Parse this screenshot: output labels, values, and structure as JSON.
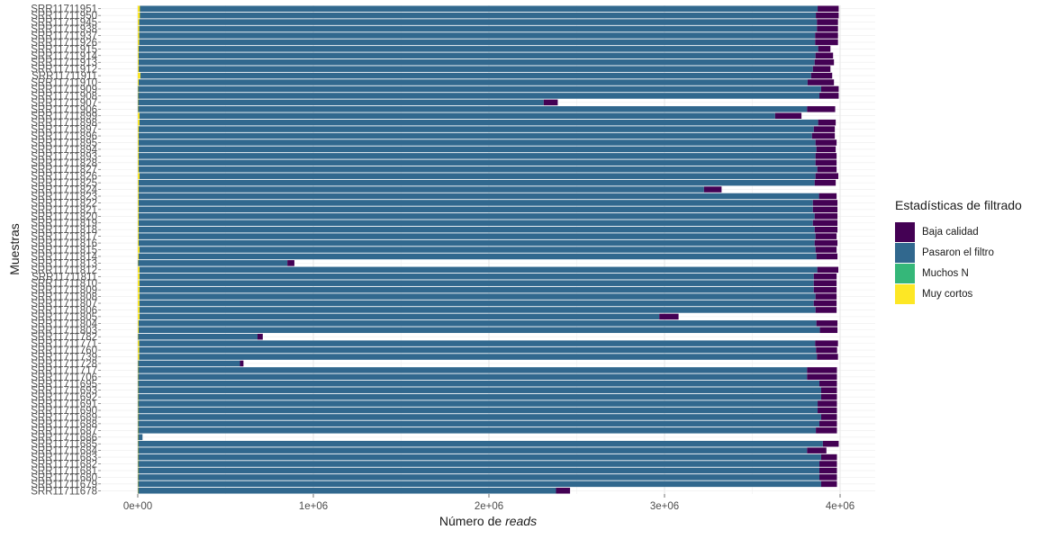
{
  "chart_data": {
    "type": "bar",
    "orientation": "horizontal",
    "stacked": true,
    "title": "",
    "xlabel_prefix": "Número  de",
    "xlabel_italic": "reads",
    "ylabel": "Muestras",
    "xlim": [
      0,
      4000000
    ],
    "xticks": [
      0,
      1000000,
      2000000,
      3000000,
      4000000
    ],
    "xtick_labels": [
      "0e+00",
      "1e+06",
      "2e+06",
      "3e+06",
      "4e+06"
    ],
    "grid": true,
    "legend_placement": "right",
    "legend_title": "Estadísticas de filtrado",
    "stack_order": [
      "Muy cortos",
      "Muchos N",
      "Pasaron el filtro",
      "Baja calidad"
    ],
    "series_meta": [
      {
        "name": "Baja calidad",
        "color": "#440154"
      },
      {
        "name": "Pasaron el filtro",
        "color": "#31688e"
      },
      {
        "name": "Muchos N",
        "color": "#35b779"
      },
      {
        "name": "Muy cortos",
        "color": "#fde725"
      }
    ],
    "categories": [
      "SRR11711951",
      "SRR11711950",
      "SRR11711945",
      "SRR11711938",
      "SRR11711937",
      "SRR11711926",
      "SRR11711915",
      "SRR11711914",
      "SRR11711913",
      "SRR11711912",
      "SRR11711911",
      "SRR11711910",
      "SRR11711909",
      "SRR11711908",
      "SRR11711907",
      "SRR11711906",
      "SRR11711899",
      "SRR11711898",
      "SRR11711897",
      "SRR11711896",
      "SRR11711895",
      "SRR11711894",
      "SRR11711893",
      "SRR11711828",
      "SRR11711827",
      "SRR11711826",
      "SRR11711825",
      "SRR11711824",
      "SRR11711823",
      "SRR11711822",
      "SRR11711821",
      "SRR11711820",
      "SRR11711819",
      "SRR11711818",
      "SRR11711817",
      "SRR11711816",
      "SRR11711815",
      "SRR11711814",
      "SRR11711813",
      "SRR11711812",
      "SRR11711811",
      "SRR11711810",
      "SRR11711809",
      "SRR11711808",
      "SRR11711807",
      "SRR11711806",
      "SRR11711805",
      "SRR11711804",
      "SRR11711803",
      "SRR11711782",
      "SRR11711771",
      "SRR11711760",
      "SRR11711739",
      "SRR11711728",
      "SRR11711717",
      "SRR11711706",
      "SRR11711695",
      "SRR11711693",
      "SRR11711692",
      "SRR11711691",
      "SRR11711690",
      "SRR11711689",
      "SRR11711688",
      "SRR11711687",
      "SRR11711686",
      "SRR11711685",
      "SRR11711684",
      "SRR11711683",
      "SRR11711682",
      "SRR11711681",
      "SRR11711680",
      "SRR11711679",
      "SRR11711678"
    ],
    "series": [
      {
        "name": "Muy cortos",
        "values": [
          12000,
          12000,
          8000,
          8000,
          8000,
          8000,
          5000,
          5000,
          5000,
          5000,
          15000,
          5000,
          2000,
          2000,
          2000,
          2000,
          10000,
          10000,
          5000,
          5000,
          5000,
          5000,
          5000,
          5000,
          5000,
          10000,
          5000,
          5000,
          5000,
          5000,
          5000,
          5000,
          5000,
          5000,
          5000,
          5000,
          10000,
          5000,
          2000,
          10000,
          10000,
          10000,
          10000,
          10000,
          10000,
          10000,
          10000,
          5000,
          5000,
          2000,
          8000,
          8000,
          8000,
          2000,
          2000,
          2000,
          2000,
          2000,
          2000,
          2000,
          2000,
          2000,
          2000,
          2000,
          2000,
          2000,
          2000,
          2000,
          2000,
          2000,
          2000,
          2000,
          2000
        ]
      },
      {
        "name": "Muchos N",
        "values": [
          0,
          0,
          0,
          0,
          0,
          0,
          0,
          0,
          0,
          0,
          0,
          0,
          0,
          0,
          0,
          0,
          0,
          0,
          0,
          0,
          0,
          0,
          0,
          0,
          0,
          0,
          0,
          0,
          0,
          0,
          0,
          0,
          0,
          0,
          0,
          0,
          0,
          0,
          0,
          0,
          0,
          0,
          0,
          0,
          0,
          0,
          0,
          0,
          0,
          0,
          0,
          0,
          0,
          0,
          0,
          0,
          0,
          0,
          0,
          0,
          0,
          0,
          0,
          0,
          0,
          0,
          0,
          0,
          0,
          0,
          0,
          0,
          0
        ]
      },
      {
        "name": "Pasaron el filtro",
        "values": [
          3860000,
          3850000,
          3860000,
          3860000,
          3850000,
          3850000,
          3870000,
          3855000,
          3850000,
          3840000,
          3820000,
          3810000,
          3890000,
          3880000,
          2310000,
          3810000,
          3620000,
          3865000,
          3845000,
          3835000,
          3855000,
          3860000,
          3855000,
          3855000,
          3865000,
          3850000,
          3850000,
          3220000,
          3875000,
          3840000,
          3840000,
          3850000,
          3840000,
          3850000,
          3855000,
          3850000,
          3850000,
          3860000,
          850000,
          3860000,
          3840000,
          3840000,
          3840000,
          3850000,
          3840000,
          3850000,
          2960000,
          3860000,
          3880000,
          680000,
          3850000,
          3855000,
          3860000,
          580000,
          3810000,
          3810000,
          3880000,
          3890000,
          3890000,
          3870000,
          3870000,
          3890000,
          3880000,
          3860000,
          25000,
          3900000,
          3810000,
          3890000,
          3880000,
          3880000,
          3880000,
          3890000,
          2380000
        ]
      },
      {
        "name": "Baja calidad",
        "values": [
          120000,
          130000,
          120000,
          120000,
          130000,
          130000,
          70000,
          100000,
          110000,
          100000,
          120000,
          150000,
          100000,
          110000,
          80000,
          160000,
          150000,
          100000,
          120000,
          130000,
          120000,
          110000,
          120000,
          120000,
          110000,
          130000,
          120000,
          100000,
          100000,
          140000,
          140000,
          130000,
          140000,
          130000,
          120000,
          130000,
          120000,
          120000,
          40000,
          120000,
          130000,
          130000,
          130000,
          120000,
          130000,
          120000,
          110000,
          120000,
          100000,
          30000,
          130000,
          120000,
          120000,
          20000,
          170000,
          170000,
          100000,
          90000,
          90000,
          110000,
          110000,
          90000,
          100000,
          120000,
          0,
          90000,
          110000,
          90000,
          100000,
          100000,
          100000,
          90000,
          80000
        ]
      }
    ]
  }
}
